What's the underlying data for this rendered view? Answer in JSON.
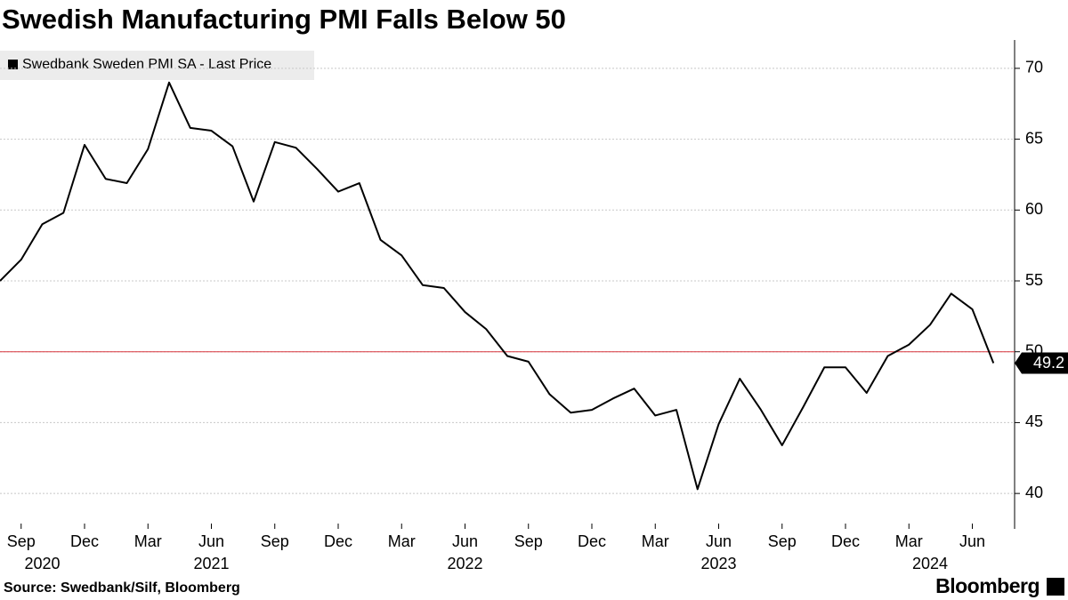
{
  "chart_data": {
    "type": "line",
    "title": "Swedish Manufacturing PMI Falls Below 50",
    "source": "Source: Swedbank/Silf, Bloomberg",
    "brand": "Bloomberg",
    "x": [
      "2020-08",
      "2020-09",
      "2020-10",
      "2020-11",
      "2020-12",
      "2021-01",
      "2021-02",
      "2021-03",
      "2021-04",
      "2021-05",
      "2021-06",
      "2021-07",
      "2021-08",
      "2021-09",
      "2021-10",
      "2021-11",
      "2021-12",
      "2022-01",
      "2022-02",
      "2022-03",
      "2022-04",
      "2022-05",
      "2022-06",
      "2022-07",
      "2022-08",
      "2022-09",
      "2022-10",
      "2022-11",
      "2022-12",
      "2023-01",
      "2023-02",
      "2023-03",
      "2023-04",
      "2023-05",
      "2023-06",
      "2023-07",
      "2023-08",
      "2023-09",
      "2023-10",
      "2023-11",
      "2023-12",
      "2024-01",
      "2024-02",
      "2024-03",
      "2024-04",
      "2024-05",
      "2024-06",
      "2024-07"
    ],
    "series": [
      {
        "name": "Swedbank Sweden PMI SA - Last Price",
        "color": "#000000",
        "values": [
          55.0,
          56.5,
          59.0,
          59.8,
          64.6,
          62.2,
          61.9,
          64.3,
          69.0,
          65.8,
          65.6,
          64.5,
          60.6,
          64.8,
          64.4,
          62.9,
          61.3,
          61.9,
          57.9,
          56.8,
          54.7,
          54.5,
          52.8,
          51.6,
          49.7,
          49.3,
          47.0,
          45.7,
          45.9,
          46.7,
          47.4,
          45.5,
          45.9,
          40.3,
          44.9,
          48.1,
          45.9,
          43.4,
          46.1,
          48.9,
          48.9,
          47.1,
          49.7,
          50.5,
          51.9,
          54.1,
          53.0,
          49.2
        ]
      }
    ],
    "xlim": [
      "2020-08",
      "2024-08"
    ],
    "xticks": [
      {
        "value": "2020-09",
        "label": "Sep"
      },
      {
        "value": "2020-12",
        "label": "Dec"
      },
      {
        "value": "2021-03",
        "label": "Mar"
      },
      {
        "value": "2021-06",
        "label": "Jun"
      },
      {
        "value": "2021-09",
        "label": "Sep"
      },
      {
        "value": "2021-12",
        "label": "Dec"
      },
      {
        "value": "2022-03",
        "label": "Mar"
      },
      {
        "value": "2022-06",
        "label": "Jun"
      },
      {
        "value": "2022-09",
        "label": "Sep"
      },
      {
        "value": "2022-12",
        "label": "Dec"
      },
      {
        "value": "2023-03",
        "label": "Mar"
      },
      {
        "value": "2023-06",
        "label": "Jun"
      },
      {
        "value": "2023-09",
        "label": "Sep"
      },
      {
        "value": "2023-12",
        "label": "Dec"
      },
      {
        "value": "2024-03",
        "label": "Mar"
      },
      {
        "value": "2024-06",
        "label": "Jun"
      }
    ],
    "xtick_years": [
      {
        "value": "2020-10",
        "label": "2020"
      },
      {
        "value": "2021-06",
        "label": "2021"
      },
      {
        "value": "2022-06",
        "label": "2022"
      },
      {
        "value": "2023-06",
        "label": "2023"
      },
      {
        "value": "2024-04",
        "label": "2024"
      }
    ],
    "ylim": [
      37.5,
      72
    ],
    "yticks": [
      40,
      45,
      50,
      55,
      60,
      65,
      70
    ],
    "grid": true,
    "reference_line": {
      "value": 50,
      "color": "#d9363e"
    }
  }
}
